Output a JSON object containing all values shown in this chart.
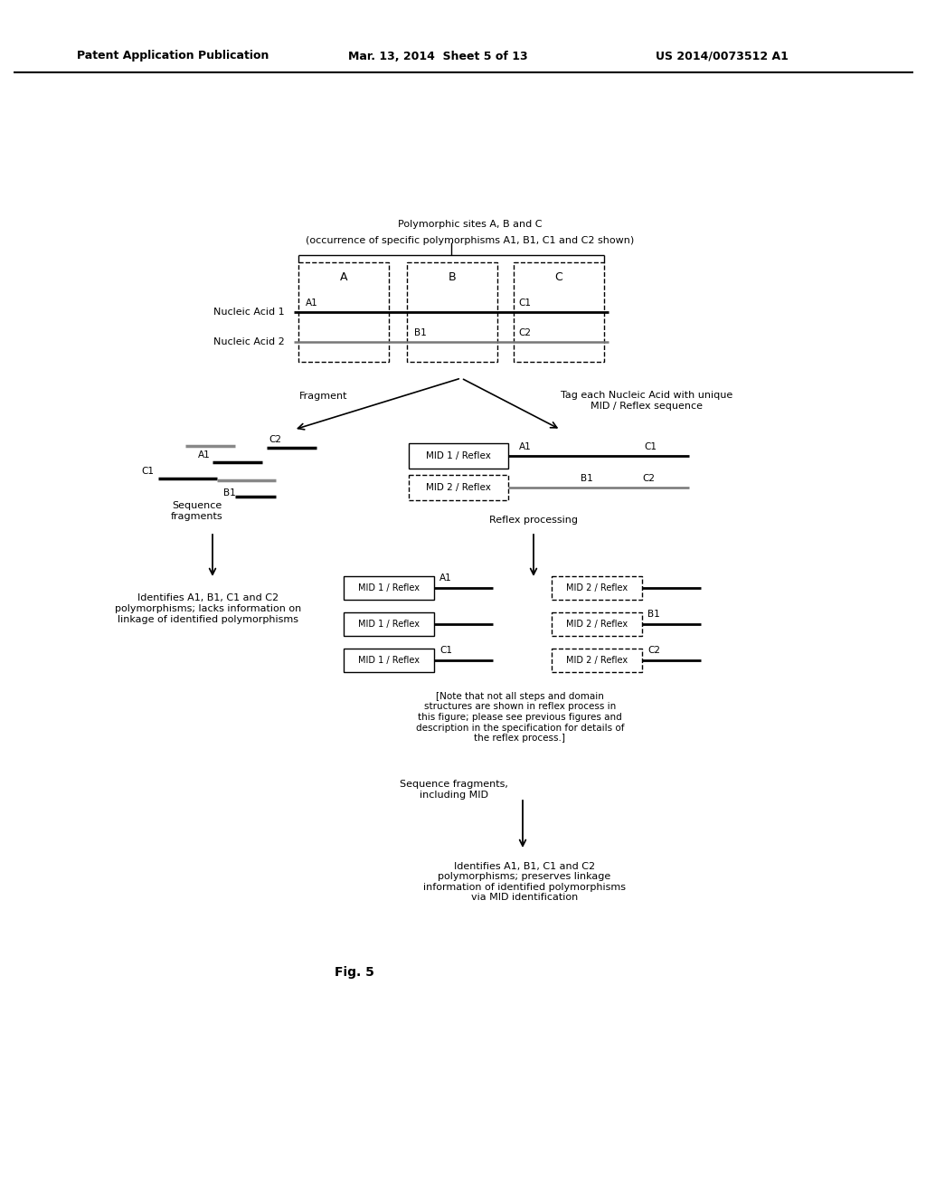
{
  "bg_color": "#ffffff",
  "header_left": "Patent Application Publication",
  "header_mid": "Mar. 13, 2014  Sheet 5 of 13",
  "header_right": "US 2014/0073512 A1",
  "fig_label": "Fig. 5",
  "title_line1": "Polymorphic sites A, B and C",
  "title_line2": "(occurrence of specific polymorphisms A1, B1, C1 and C2 shown)",
  "box_labels": [
    "A",
    "B",
    "C"
  ],
  "na1_label": "Nucleic Acid 1",
  "na2_label": "Nucleic Acid 2",
  "fragment_label": "Fragment",
  "tag_label": "Tag each Nucleic Acid with unique\nMID / Reflex sequence",
  "seq_frag_label": "Sequence\nfragments",
  "identifies_left": "Identifies A1, B1, C1 and C2\npolymorphisms; lacks information on\nlinkage of identified polymorphisms",
  "mid1_label": "MID 1 / Reflex",
  "mid2_label": "MID 2 / Reflex",
  "reflex_label": "Reflex processing",
  "note_text": "[Note that not all steps and domain\nstructures are shown in reflex process in\nthis figure; please see previous figures and\ndescription in the specification for details of\nthe reflex process.]",
  "seq_frag_mid_label": "Sequence fragments,\nincluding MID",
  "identifies_right": "Identifies A1, B1, C1 and C2\npolymorphisms; preserves linkage\ninformation of identified polymorphisms\nvia MID identification"
}
